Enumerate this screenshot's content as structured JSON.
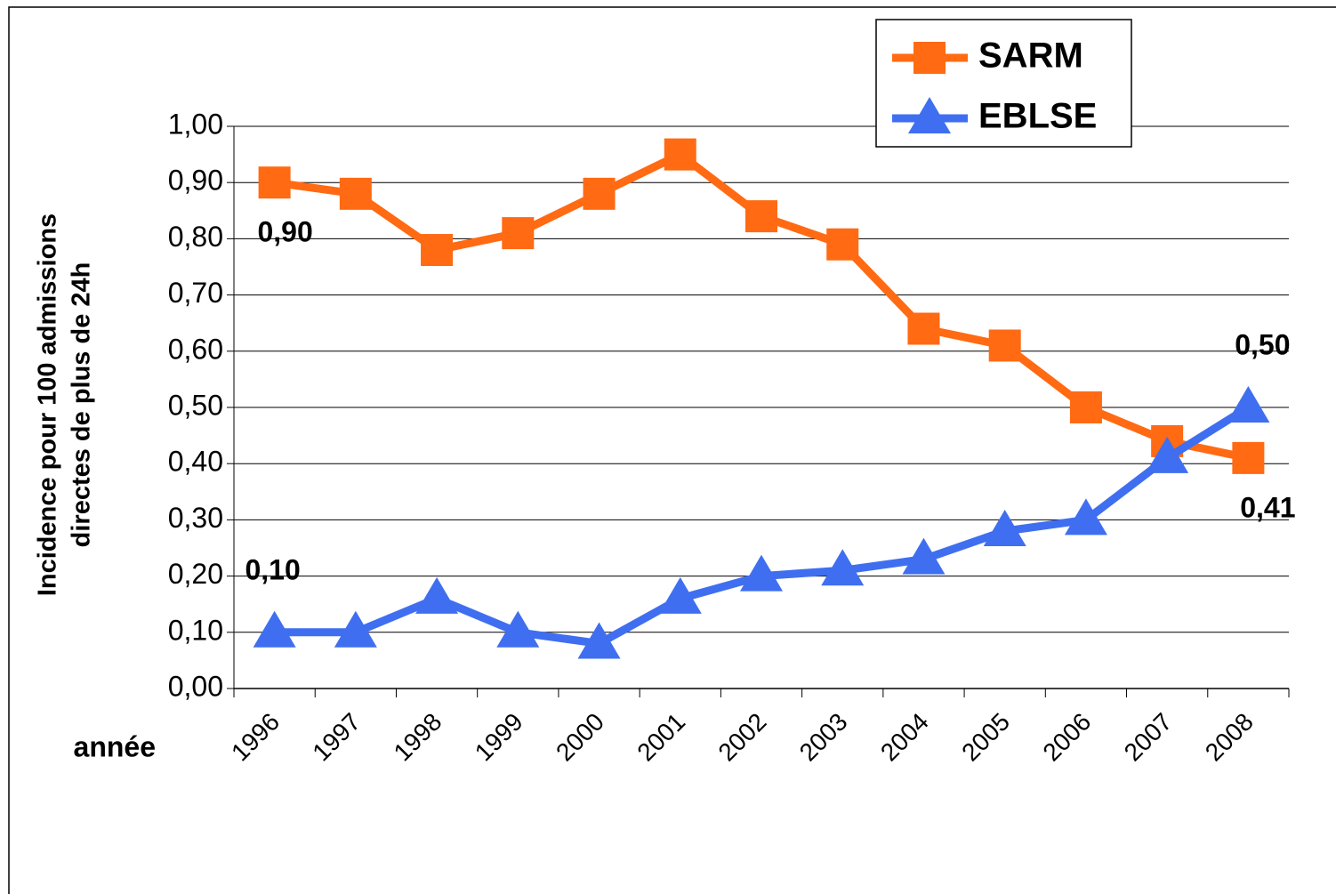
{
  "chart_data": {
    "type": "line",
    "ylabel": [
      "Incidence pour 100 admissions",
      "directes de plus de 24h"
    ],
    "xlabel": "année",
    "categories": [
      "1996",
      "1997",
      "1998",
      "1999",
      "2000",
      "2001",
      "2002",
      "2003",
      "2004",
      "2005",
      "2006",
      "2007",
      "2008"
    ],
    "series": [
      {
        "name": "SARM",
        "color": "#ff6a13",
        "marker": "square",
        "values": [
          0.9,
          0.88,
          0.78,
          0.81,
          0.88,
          0.95,
          0.84,
          0.79,
          0.64,
          0.61,
          0.5,
          0.44,
          0.41
        ],
        "value_labels": [
          "0,90",
          null,
          null,
          null,
          null,
          null,
          null,
          null,
          null,
          null,
          null,
          null,
          "0,41"
        ]
      },
      {
        "name": "EBLSE",
        "color": "#3f6ff0",
        "marker": "triangle",
        "values": [
          0.1,
          0.1,
          0.16,
          0.1,
          0.08,
          0.16,
          0.2,
          0.21,
          0.23,
          0.28,
          0.3,
          0.41,
          0.5
        ],
        "value_labels": [
          "0,10",
          null,
          null,
          null,
          null,
          null,
          null,
          null,
          null,
          null,
          null,
          null,
          "0,50"
        ]
      }
    ],
    "ylim": [
      0,
      1
    ],
    "yticks": [
      {
        "value": 0,
        "label": "0,00"
      },
      {
        "value": 0.1,
        "label": "0,10"
      },
      {
        "value": 0.2,
        "label": "0,20"
      },
      {
        "value": 0.3,
        "label": "0,30"
      },
      {
        "value": 0.4,
        "label": "0,40"
      },
      {
        "value": 0.5,
        "label": "0,50"
      },
      {
        "value": 0.6,
        "label": "0,60"
      },
      {
        "value": 0.7,
        "label": "0,70"
      },
      {
        "value": 0.8,
        "label": "0,80"
      },
      {
        "value": 0.9,
        "label": "0,90"
      },
      {
        "value": 1,
        "label": "1,00"
      }
    ],
    "grid": true,
    "legend": "top-right"
  }
}
